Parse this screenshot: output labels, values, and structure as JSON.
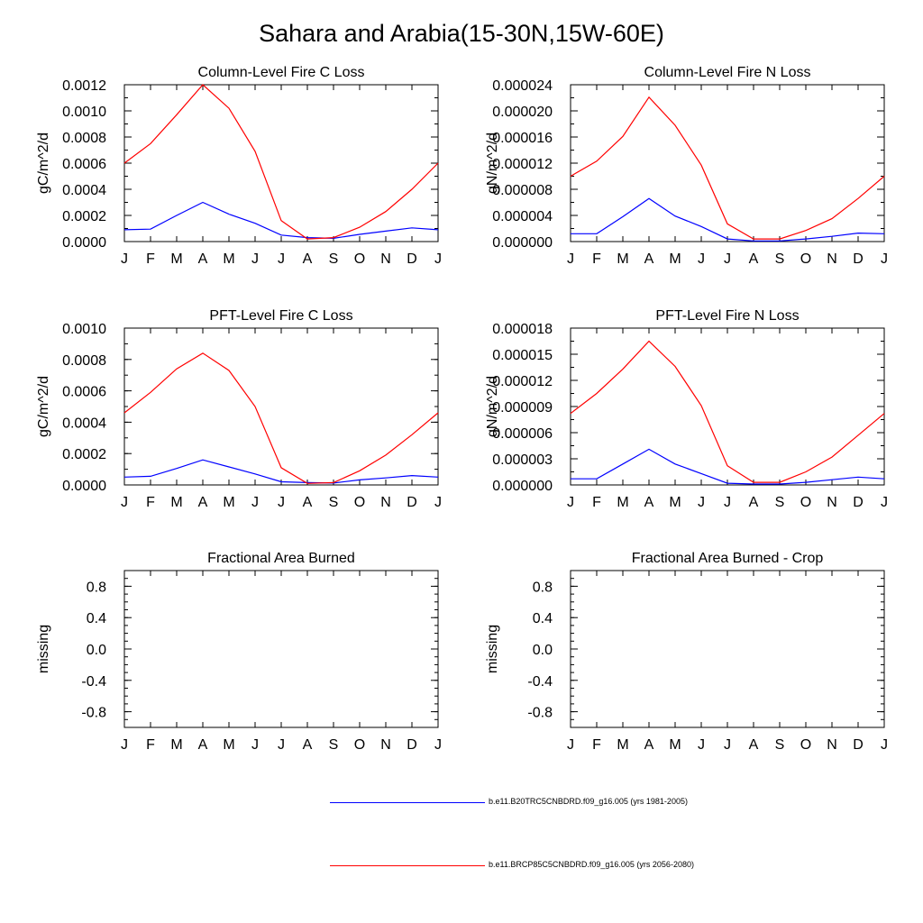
{
  "title": "Sahara and Arabia(15-30N,15W-60E)",
  "months": [
    "J",
    "F",
    "M",
    "A",
    "M",
    "J",
    "J",
    "A",
    "S",
    "O",
    "N",
    "D",
    "J"
  ],
  "colors": {
    "base": "#0000ff",
    "future": "#ff0000"
  },
  "legend": [
    {
      "label": "b.e11.B20TRC5CNBDRD.f09_g16.005 (yrs 1981-2005)",
      "color": "#0000ff"
    },
    {
      "label": "b.e11.BRCP85C5CNBDRD.f09_g16.005 (yrs 2056-2080)",
      "color": "#ff0000"
    }
  ],
  "chart_data": [
    {
      "type": "line",
      "title": "Column-Level Fire C Loss",
      "ylabel": "gC/m^2/d",
      "ylim": [
        0,
        0.0012
      ],
      "yticks": [
        "0.0000",
        "0.0002",
        "0.0004",
        "0.0006",
        "0.0008",
        "0.0010",
        "0.0012"
      ],
      "yminor": 0.0001,
      "series": [
        {
          "name": "b.e11.B20TRC5CNBDRD.f09_g16.005 (yrs 1981-2005)",
          "color": "#0000ff",
          "values": [
            9e-05,
            9.5e-05,
            0.0002,
            0.0003,
            0.00021,
            0.00014,
            5e-05,
            3e-05,
            2.5e-05,
            5.5e-05,
            8e-05,
            0.000105,
            9e-05
          ]
        },
        {
          "name": "b.e11.BRCP85C5CNBDRD.f09_g16.005 (yrs 2056-2080)",
          "color": "#ff0000",
          "values": [
            0.0006,
            0.00075,
            0.00097,
            0.0012,
            0.00102,
            0.00069,
            0.00016,
            2e-05,
            3e-05,
            0.00011,
            0.00023,
            0.0004,
            0.0006
          ]
        }
      ]
    },
    {
      "type": "line",
      "title": "Column-Level Fire N Loss",
      "ylabel": "gN/m^2/d",
      "ylim": [
        0,
        2.4e-05
      ],
      "yticks": [
        "0.000000",
        "0.000004",
        "0.000008",
        "0.000012",
        "0.000016",
        "0.000020",
        "0.000024"
      ],
      "yminor": 2e-06,
      "series": [
        {
          "name": "b.e11.B20TRC5CNBDRD.f09_g16.005 (yrs 1981-2005)",
          "color": "#0000ff",
          "values": [
            1.2e-06,
            1.2e-06,
            3.8e-06,
            6.6e-06,
            3.9e-06,
            2.3e-06,
            4e-07,
            1e-07,
            1e-07,
            4e-07,
            8e-07,
            1.3e-06,
            1.2e-06
          ]
        },
        {
          "name": "b.e11.BRCP85C5CNBDRD.f09_g16.005 (yrs 2056-2080)",
          "color": "#ff0000",
          "values": [
            1e-05,
            1.23e-05,
            1.61e-05,
            2.21e-05,
            1.78e-05,
            1.17e-05,
            2.7e-06,
            4e-07,
            4e-07,
            1.7e-06,
            3.5e-06,
            6.6e-06,
            1e-05
          ]
        }
      ]
    },
    {
      "type": "line",
      "title": "PFT-Level Fire C Loss",
      "ylabel": "gC/m^2/d",
      "ylim": [
        0,
        0.001
      ],
      "yticks": [
        "0.0000",
        "0.0002",
        "0.0004",
        "0.0006",
        "0.0008",
        "0.0010"
      ],
      "yminor": 0.0001,
      "series": [
        {
          "name": "b.e11.B20TRC5CNBDRD.f09_g16.005 (yrs 1981-2005)",
          "color": "#0000ff",
          "values": [
            5e-05,
            5.5e-05,
            0.000105,
            0.00016,
            0.000115,
            7e-05,
            2e-05,
            1.5e-05,
            1.2e-05,
            3.2e-05,
            4.5e-05,
            6e-05,
            5e-05
          ]
        },
        {
          "name": "b.e11.BRCP85C5CNBDRD.f09_g16.005 (yrs 2056-2080)",
          "color": "#ff0000",
          "values": [
            0.00046,
            0.00059,
            0.00074,
            0.00084,
            0.00073,
            0.0005,
            0.00011,
            1e-05,
            1.5e-05,
            9e-05,
            0.00019,
            0.00032,
            0.00046
          ]
        }
      ]
    },
    {
      "type": "line",
      "title": "PFT-Level Fire N Loss",
      "ylabel": "gN/m^2/d",
      "ylim": [
        0,
        1.8e-05
      ],
      "yticks": [
        "0.000000",
        "0.000003",
        "0.000006",
        "0.000009",
        "0.000012",
        "0.000015",
        "0.000018"
      ],
      "yminor": 1.5e-06,
      "series": [
        {
          "name": "b.e11.B20TRC5CNBDRD.f09_g16.005 (yrs 1981-2005)",
          "color": "#0000ff",
          "values": [
            7e-07,
            7e-07,
            2.4e-06,
            4.1e-06,
            2.4e-06,
            1.3e-06,
            2e-07,
            1e-07,
            1e-07,
            3e-07,
            6e-07,
            9e-07,
            7e-07
          ]
        },
        {
          "name": "b.e11.BRCP85C5CNBDRD.f09_g16.005 (yrs 2056-2080)",
          "color": "#ff0000",
          "values": [
            8.2e-06,
            1.05e-05,
            1.33e-05,
            1.65e-05,
            1.36e-05,
            9.1e-06,
            2.2e-06,
            3e-07,
            3e-07,
            1.5e-06,
            3.2e-06,
            5.7e-06,
            8.2e-06
          ]
        }
      ]
    },
    {
      "type": "line",
      "title": "Fractional Area Burned",
      "ylabel": "missing",
      "ylim": [
        -1,
        1
      ],
      "yticks": [
        "-0.8",
        "-0.4",
        "0.0",
        "0.4",
        "0.8"
      ],
      "ytickvalues": [
        -0.8,
        -0.4,
        0,
        0.4,
        0.8
      ],
      "yminor": 0.1,
      "series": []
    },
    {
      "type": "line",
      "title": "Fractional Area Burned - Crop",
      "ylabel": "missing",
      "ylim": [
        -1,
        1
      ],
      "yticks": [
        "-0.8",
        "-0.4",
        "0.0",
        "0.4",
        "0.8"
      ],
      "ytickvalues": [
        -0.8,
        -0.4,
        0,
        0.4,
        0.8
      ],
      "yminor": 0.1,
      "series": []
    }
  ]
}
